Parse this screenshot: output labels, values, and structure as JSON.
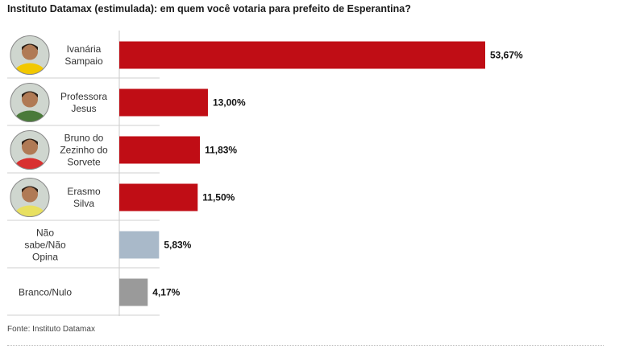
{
  "chart_data": {
    "type": "bar",
    "orientation": "horizontal",
    "title": "Instituto Datamax (estimulada): em quem você votaria para prefeito de Esperantina?",
    "categories": [
      [
        "Ivanária",
        "Sampaio"
      ],
      [
        "Professora",
        "Jesus"
      ],
      [
        "Bruno do",
        "Zezinho do",
        "Sorvete"
      ],
      [
        "Erasmo",
        "Silva"
      ],
      [
        "Não",
        "sabe/Não",
        "Opina"
      ],
      [
        "Branco/Nulo"
      ]
    ],
    "values": [
      53.67,
      13.0,
      11.83,
      11.5,
      5.83,
      4.17
    ],
    "value_labels": [
      "53,67%",
      "13,00%",
      "11,83%",
      "11,50%",
      "5,83%",
      "4,17%"
    ],
    "bar_colors": [
      "#c00d15",
      "#c00d15",
      "#c00d15",
      "#c00d15",
      "#a9b9c9",
      "#9a9a9a"
    ],
    "has_photo": [
      true,
      true,
      true,
      true,
      false,
      false
    ],
    "photo_shirt_colors": [
      "#f2c800",
      "#4a7a3a",
      "#d83030",
      "#e8e060"
    ],
    "xlim": [
      0,
      53.67
    ],
    "xlabel": "",
    "ylabel": "",
    "grid": false,
    "legend": "none"
  },
  "source": "Fonte: Instituto Datamax"
}
